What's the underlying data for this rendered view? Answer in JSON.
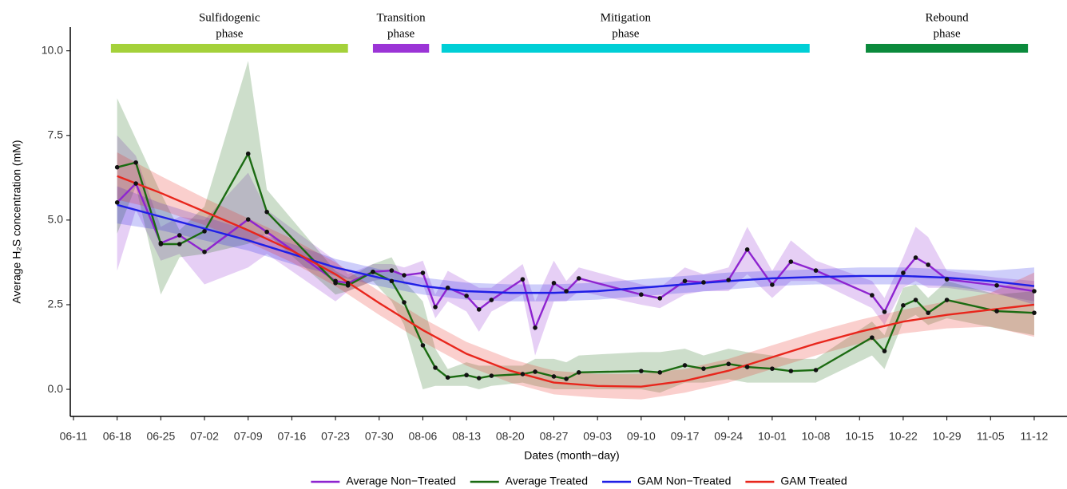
{
  "chart_data": {
    "type": "line",
    "y_label": "Average H₂S concentration (mM)",
    "x_label": "Dates (month−day)",
    "xlim": [
      "06-11",
      "11-17"
    ],
    "xticks": [
      "06-11",
      "06-18",
      "06-25",
      "07-02",
      "07-09",
      "07-16",
      "07-23",
      "07-30",
      "08-06",
      "08-13",
      "08-20",
      "08-27",
      "09-03",
      "09-10",
      "09-17",
      "09-24",
      "10-01",
      "10-08",
      "10-15",
      "10-22",
      "10-29",
      "11-05",
      "11-12"
    ],
    "ylim": [
      -0.8,
      10.7
    ],
    "yticks": [
      {
        "value": 0,
        "label": "0.0"
      },
      {
        "value": 2.5,
        "label": "2.5"
      },
      {
        "value": 5,
        "label": "5.0"
      },
      {
        "value": 7.5,
        "label": "7.5"
      },
      {
        "value": 10,
        "label": "10.0"
      }
    ],
    "grid": false,
    "legend": "bottom",
    "phases": [
      {
        "label_lines": [
          "Sulfidogenic",
          "phase"
        ],
        "start": "06-17",
        "end": "07-25",
        "color": "#a4d13a"
      },
      {
        "label_lines": [
          "Transition",
          "phase"
        ],
        "start": "07-29",
        "end": "08-07",
        "color": "#9b34d6"
      },
      {
        "label_lines": [
          "Mitigation",
          "phase"
        ],
        "start": "08-09",
        "end": "10-07",
        "color": "#00cfd6"
      },
      {
        "label_lines": [
          "Rebound",
          "phase"
        ],
        "start": "10-16",
        "end": "11-11",
        "color": "#0b8a3c"
      }
    ],
    "series": [
      {
        "name": "Average Non−Treated",
        "color": "#8e24d0",
        "markers": true,
        "x": [
          "06-18",
          "06-21",
          "06-25",
          "06-28",
          "07-02",
          "07-09",
          "07-12",
          "07-23",
          "07-25",
          "07-29",
          "08-01",
          "08-03",
          "08-06",
          "08-08",
          "08-10",
          "08-13",
          "08-15",
          "08-17",
          "08-22",
          "08-24",
          "08-27",
          "08-29",
          "08-31",
          "09-10",
          "09-13",
          "09-17",
          "09-20",
          "09-24",
          "09-27",
          "10-01",
          "10-04",
          "10-08",
          "10-17",
          "10-19",
          "10-22",
          "10-24",
          "10-26",
          "10-29",
          "11-06",
          "11-12"
        ],
        "values": [
          5.52,
          6.08,
          4.32,
          4.55,
          4.06,
          5.02,
          4.65,
          3.2,
          3.14,
          3.47,
          3.51,
          3.37,
          3.44,
          2.43,
          3.0,
          2.76,
          2.36,
          2.64,
          3.25,
          1.82,
          3.14,
          2.9,
          3.28,
          2.8,
          2.69,
          3.2,
          3.16,
          3.23,
          4.13,
          3.09,
          3.77,
          3.51,
          2.78,
          2.29,
          3.44,
          3.89,
          3.68,
          3.25,
          3.07,
          2.9
        ],
        "lower": [
          3.5,
          5.3,
          3.8,
          4.0,
          3.1,
          3.6,
          4.0,
          2.6,
          2.9,
          3.2,
          3.3,
          3.1,
          3.1,
          2.1,
          2.6,
          2.3,
          1.7,
          2.3,
          2.8,
          1.0,
          2.6,
          2.6,
          2.9,
          2.5,
          2.4,
          2.8,
          2.9,
          2.9,
          3.4,
          2.7,
          3.2,
          3.2,
          2.4,
          1.9,
          3.0,
          3.2,
          3.0,
          3.0,
          2.8,
          2.6
        ],
        "upper": [
          7.5,
          6.9,
          4.8,
          5.1,
          5.0,
          6.4,
          5.3,
          3.8,
          3.4,
          3.7,
          3.7,
          3.6,
          3.8,
          2.8,
          3.5,
          3.2,
          3.0,
          3.0,
          3.7,
          2.6,
          3.8,
          3.2,
          3.6,
          3.1,
          3.0,
          3.6,
          3.4,
          3.6,
          4.8,
          3.5,
          4.4,
          3.8,
          3.2,
          2.7,
          3.9,
          4.8,
          4.5,
          3.5,
          3.3,
          3.2
        ]
      },
      {
        "name": "Average Treated",
        "color": "#1b6b12",
        "markers": true,
        "x": [
          "06-18",
          "06-21",
          "06-25",
          "06-28",
          "07-02",
          "07-09",
          "07-12",
          "07-23",
          "07-25",
          "07-29",
          "08-01",
          "08-03",
          "08-06",
          "08-08",
          "08-10",
          "08-13",
          "08-15",
          "08-17",
          "08-22",
          "08-24",
          "08-27",
          "08-29",
          "08-31",
          "09-10",
          "09-13",
          "09-17",
          "09-20",
          "09-24",
          "09-27",
          "10-01",
          "10-04",
          "10-08",
          "10-17",
          "10-19",
          "10-22",
          "10-24",
          "10-26",
          "10-29",
          "11-06",
          "11-12"
        ],
        "values": [
          6.56,
          6.7,
          4.29,
          4.29,
          4.67,
          6.96,
          5.24,
          3.14,
          3.07,
          3.47,
          3.2,
          2.57,
          1.3,
          0.64,
          0.35,
          0.42,
          0.33,
          0.4,
          0.45,
          0.52,
          0.38,
          0.31,
          0.5,
          0.54,
          0.5,
          0.71,
          0.61,
          0.75,
          0.66,
          0.61,
          0.54,
          0.57,
          1.53,
          1.13,
          2.48,
          2.64,
          2.26,
          2.64,
          2.31,
          2.26
        ],
        "lower": [
          4.6,
          6.0,
          2.8,
          3.9,
          4.0,
          4.3,
          4.6,
          2.8,
          2.9,
          3.2,
          2.6,
          1.9,
          0.0,
          0.1,
          0.1,
          0.1,
          0.0,
          0.1,
          0.2,
          0.1,
          0.0,
          0.0,
          0.0,
          0.0,
          -0.1,
          0.2,
          0.2,
          0.3,
          0.2,
          0.2,
          0.2,
          0.2,
          1.0,
          0.6,
          2.0,
          2.2,
          1.9,
          2.1,
          1.8,
          1.6
        ],
        "upper": [
          8.6,
          7.4,
          5.8,
          4.7,
          5.4,
          9.7,
          5.9,
          3.5,
          3.3,
          3.7,
          3.9,
          3.2,
          2.6,
          1.2,
          0.6,
          0.8,
          0.7,
          0.7,
          0.7,
          0.9,
          0.9,
          0.8,
          1.0,
          1.1,
          1.1,
          1.2,
          1.0,
          1.2,
          1.1,
          1.0,
          0.9,
          0.9,
          2.0,
          1.6,
          3.0,
          3.1,
          2.7,
          3.2,
          2.8,
          2.9
        ]
      },
      {
        "name": "GAM Non−Treated",
        "color": "#1f1fe6",
        "markers": false,
        "x": [
          "06-18",
          "06-25",
          "07-02",
          "07-09",
          "07-16",
          "07-23",
          "07-30",
          "08-06",
          "08-13",
          "08-20",
          "08-27",
          "09-03",
          "09-10",
          "09-17",
          "09-24",
          "10-01",
          "10-08",
          "10-15",
          "10-22",
          "10-29",
          "11-05",
          "11-12"
        ],
        "values": [
          5.45,
          5.1,
          4.75,
          4.4,
          4.0,
          3.6,
          3.3,
          3.05,
          2.9,
          2.85,
          2.85,
          2.9,
          3.0,
          3.1,
          3.2,
          3.28,
          3.32,
          3.35,
          3.35,
          3.3,
          3.2,
          3.05
        ],
        "lower": [
          4.9,
          4.7,
          4.4,
          4.1,
          3.7,
          3.35,
          3.05,
          2.8,
          2.65,
          2.6,
          2.6,
          2.65,
          2.75,
          2.85,
          2.95,
          3.05,
          3.1,
          3.1,
          3.1,
          3.05,
          2.9,
          2.5
        ],
        "upper": [
          6.0,
          5.5,
          5.1,
          4.7,
          4.3,
          3.85,
          3.55,
          3.3,
          3.15,
          3.1,
          3.1,
          3.15,
          3.25,
          3.35,
          3.45,
          3.5,
          3.55,
          3.6,
          3.6,
          3.55,
          3.5,
          3.6
        ]
      },
      {
        "name": "GAM Treated",
        "color": "#e8261c",
        "markers": false,
        "x": [
          "06-18",
          "06-25",
          "07-02",
          "07-09",
          "07-16",
          "07-23",
          "07-30",
          "08-06",
          "08-13",
          "08-20",
          "08-27",
          "09-03",
          "09-10",
          "09-17",
          "09-24",
          "10-01",
          "10-08",
          "10-15",
          "10-22",
          "10-29",
          "11-05",
          "11-12"
        ],
        "values": [
          6.3,
          5.8,
          5.25,
          4.7,
          4.1,
          3.4,
          2.55,
          1.75,
          1.05,
          0.55,
          0.2,
          0.1,
          0.08,
          0.25,
          0.55,
          0.95,
          1.35,
          1.7,
          2.0,
          2.2,
          2.35,
          2.5
        ],
        "lower": [
          5.6,
          5.3,
          4.85,
          4.35,
          3.75,
          3.05,
          2.2,
          1.4,
          0.7,
          0.2,
          -0.15,
          -0.25,
          -0.3,
          -0.1,
          0.2,
          0.6,
          1.0,
          1.35,
          1.65,
          1.8,
          1.85,
          1.55
        ],
        "upper": [
          7.0,
          6.3,
          5.65,
          5.05,
          4.45,
          3.75,
          2.9,
          2.1,
          1.4,
          0.9,
          0.55,
          0.45,
          0.46,
          0.6,
          0.9,
          1.3,
          1.7,
          2.05,
          2.35,
          2.6,
          2.85,
          3.45
        ]
      }
    ]
  }
}
